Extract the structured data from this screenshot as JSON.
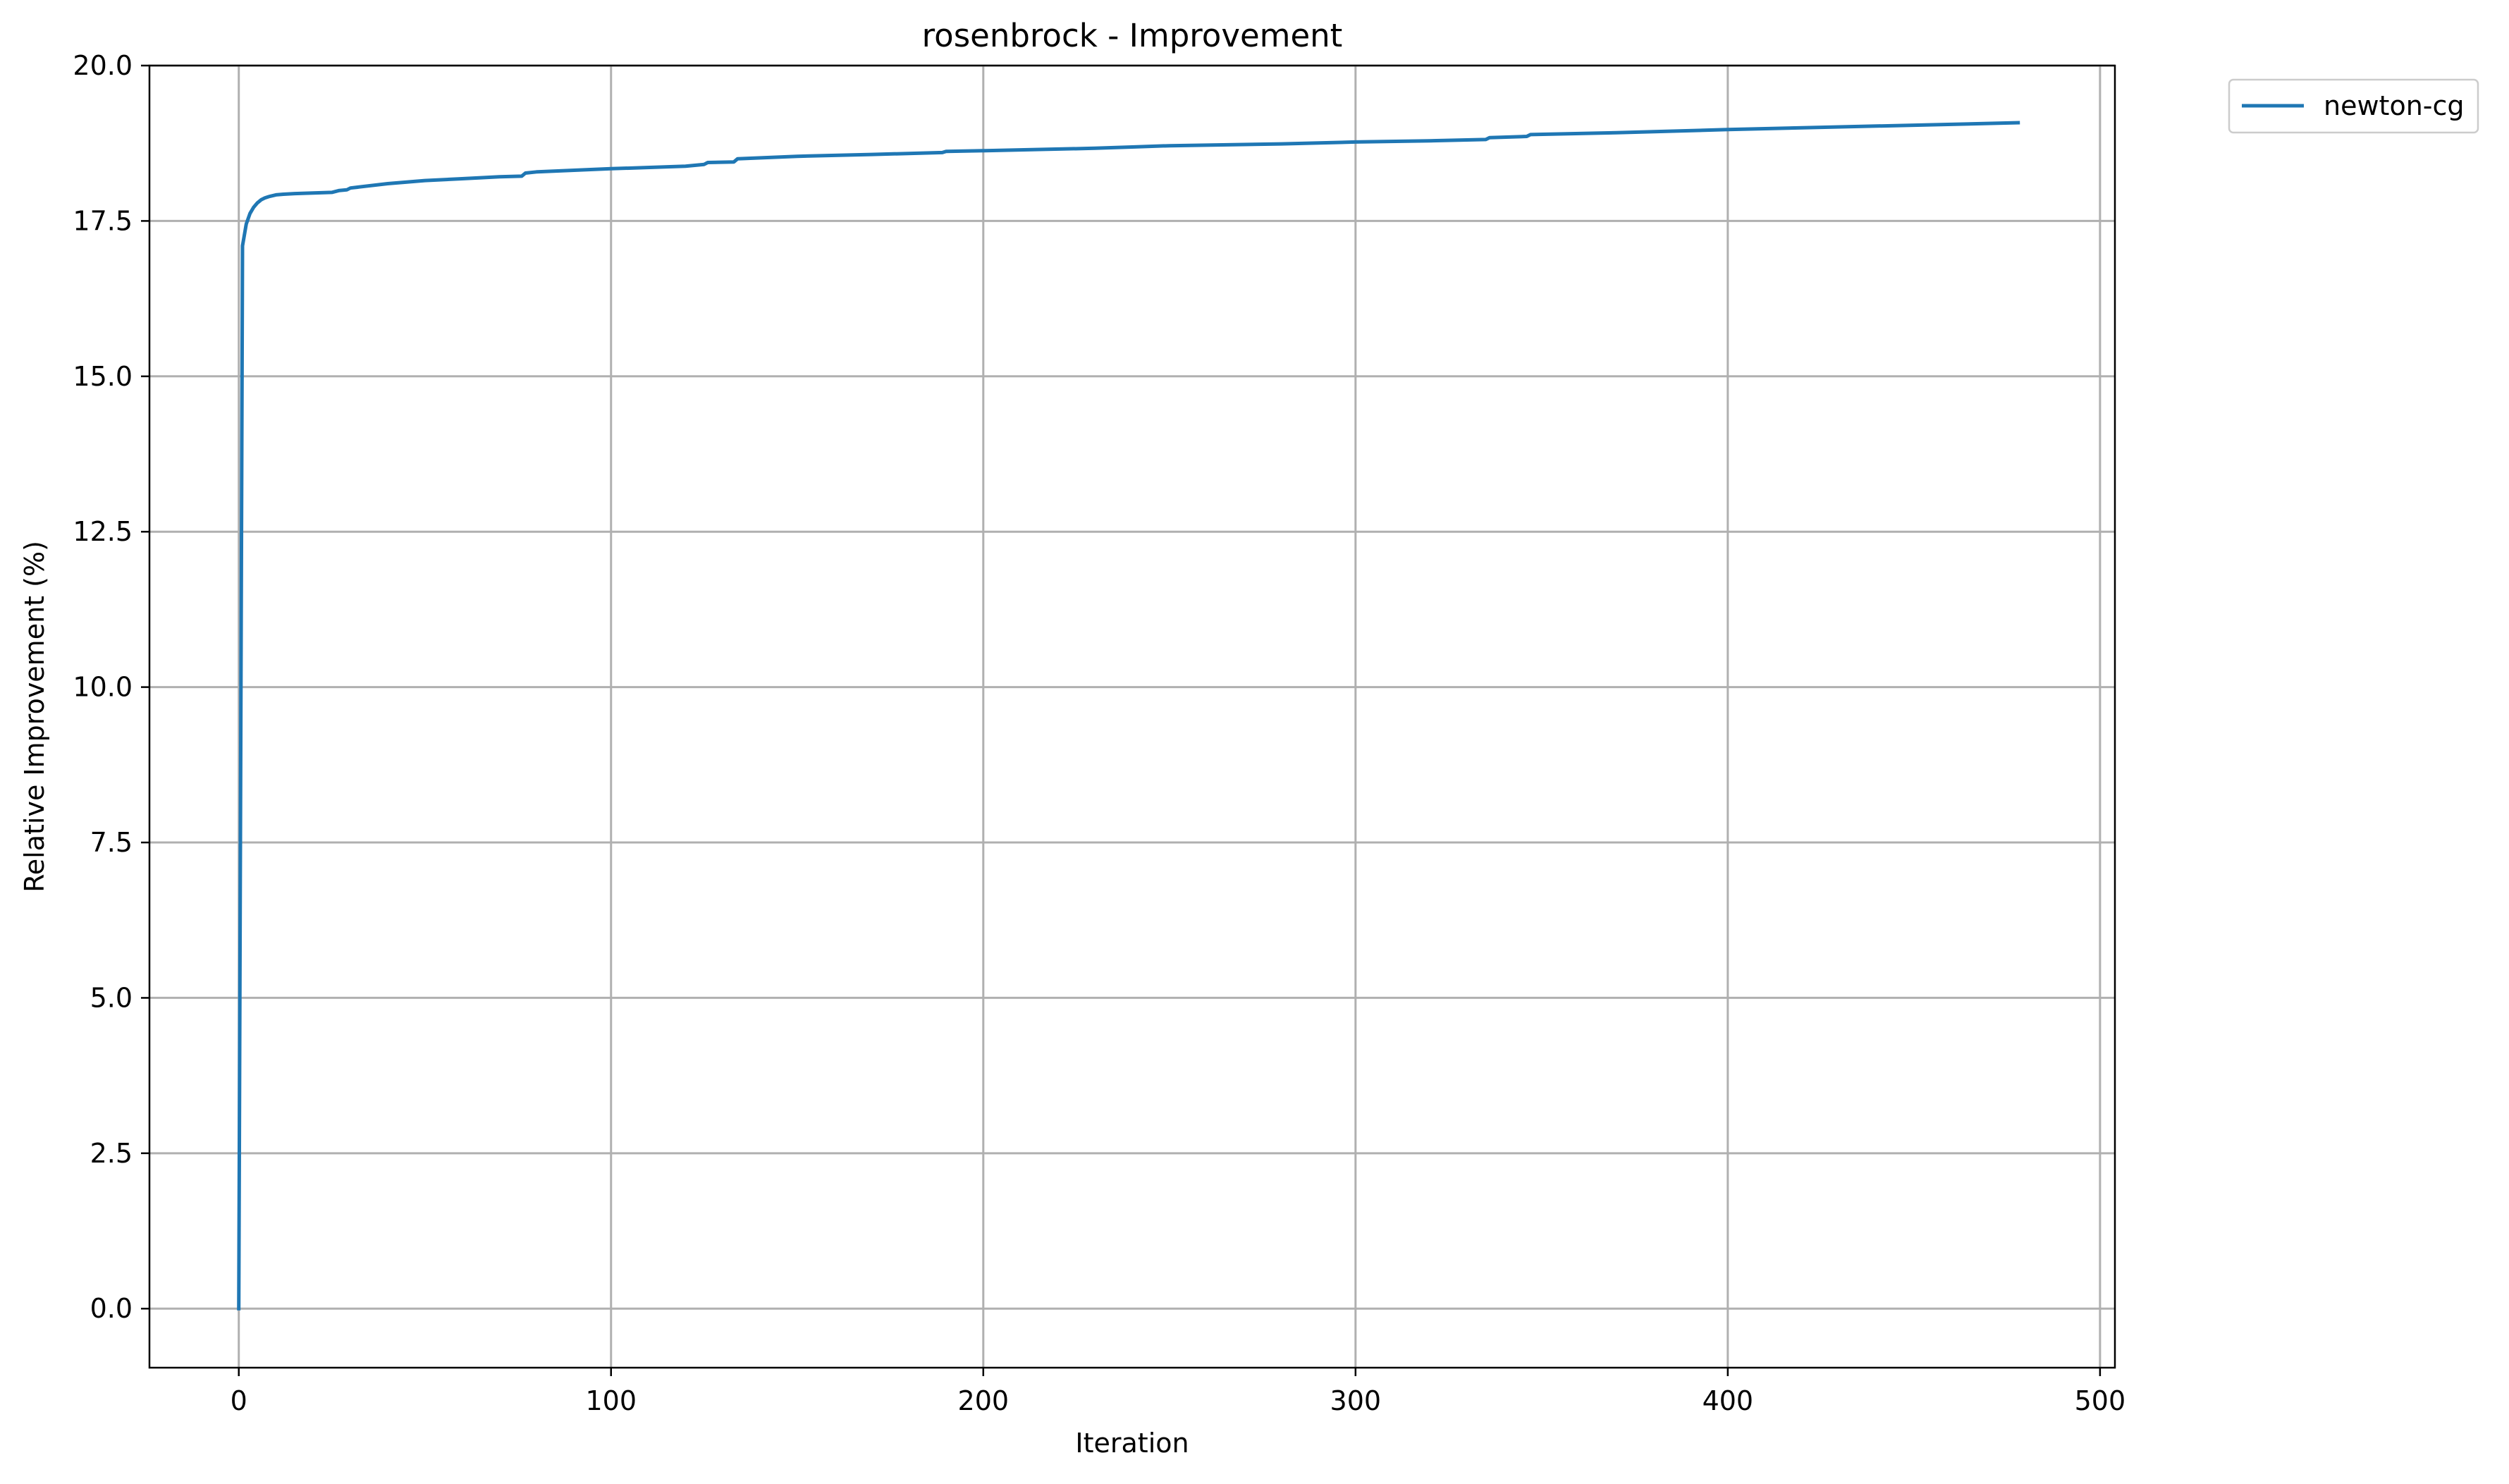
{
  "chart_data": {
    "type": "line",
    "title": "rosenbrock - Improvement",
    "xlabel": "Iteration",
    "ylabel": "Relative Improvement (%)",
    "xlim": [
      -24,
      504
    ],
    "ylim": [
      -0.95,
      20.0
    ],
    "xticks": [
      0,
      100,
      200,
      300,
      400,
      500
    ],
    "xtick_labels": [
      "0",
      "100",
      "200",
      "300",
      "400",
      "500"
    ],
    "yticks": [
      0.0,
      2.5,
      5.0,
      7.5,
      10.0,
      12.5,
      15.0,
      17.5,
      20.0
    ],
    "ytick_labels": [
      "0.0",
      "2.5",
      "5.0",
      "7.5",
      "10.0",
      "12.5",
      "15.0",
      "17.5",
      "20.0"
    ],
    "grid": true,
    "legend_position": "outside-top-right",
    "series": [
      {
        "name": "newton-cg",
        "color": "#1f77b4",
        "x": [
          0,
          1,
          2,
          3,
          4,
          5,
          6,
          7,
          8,
          10,
          12,
          15,
          20,
          25,
          27,
          29,
          30,
          40,
          50,
          60,
          70,
          76,
          77,
          80,
          100,
          120,
          125,
          126,
          133,
          134,
          150,
          170,
          189,
          190,
          200,
          230,
          240,
          250,
          280,
          300,
          320,
          335,
          336,
          346,
          347,
          370,
          400,
          420,
          450,
          478
        ],
        "y": [
          0.0,
          17.1,
          17.45,
          17.62,
          17.72,
          17.79,
          17.84,
          17.87,
          17.89,
          17.92,
          17.93,
          17.94,
          17.95,
          17.96,
          17.99,
          18.0,
          18.03,
          18.1,
          18.15,
          18.18,
          18.21,
          18.22,
          18.27,
          18.29,
          18.34,
          18.38,
          18.41,
          18.44,
          18.45,
          18.5,
          18.54,
          18.57,
          18.6,
          18.62,
          18.63,
          18.67,
          18.69,
          18.71,
          18.74,
          18.77,
          18.79,
          18.81,
          18.84,
          18.86,
          18.89,
          18.92,
          18.97,
          19.0,
          19.04,
          19.08
        ]
      }
    ]
  }
}
